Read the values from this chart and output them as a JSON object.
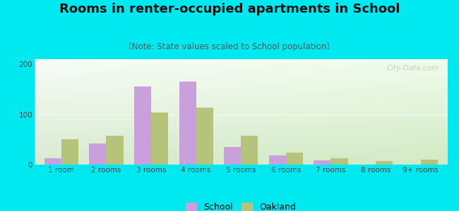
{
  "title": "Rooms in renter-occupied apartments in School",
  "subtitle": "(Note: State values scaled to School population)",
  "categories": [
    "1 room",
    "2 rooms",
    "3 rooms",
    "4 rooms",
    "5 rooms",
    "6 rooms",
    "7 rooms",
    "8 rooms",
    "9+ rooms"
  ],
  "school_values": [
    12,
    42,
    155,
    165,
    35,
    18,
    9,
    0,
    0
  ],
  "oakland_values": [
    50,
    57,
    103,
    113,
    57,
    24,
    12,
    7,
    10
  ],
  "school_color": "#c9a0dc",
  "oakland_color": "#b5c47a",
  "background_outer": "#00e8f0",
  "ylim": [
    0,
    210
  ],
  "yticks": [
    0,
    100,
    200
  ],
  "bar_width": 0.38,
  "legend_labels": [
    "School",
    "Oakland"
  ],
  "watermark": "City-Data.com",
  "title_fontsize": 13,
  "subtitle_fontsize": 8.5,
  "tick_fontsize": 7.5
}
